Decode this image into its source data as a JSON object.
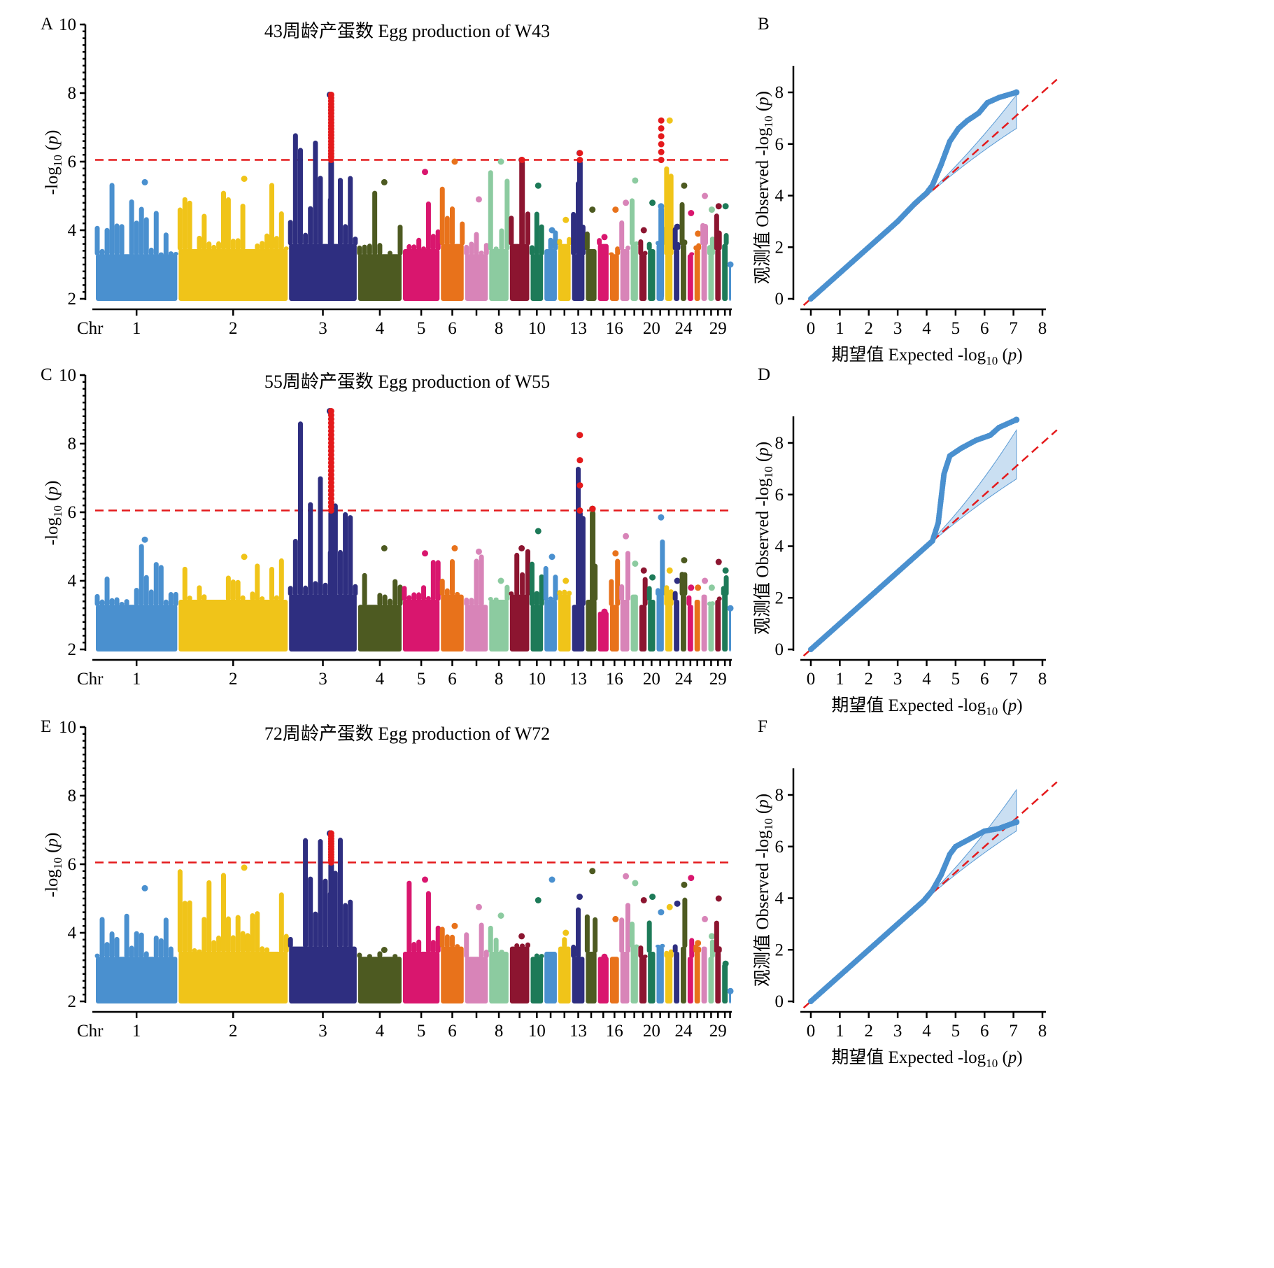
{
  "colors": {
    "chromosomes": [
      "#4a90cf",
      "#f0c419",
      "#2e2e80",
      "#4d5a21",
      "#d9166e",
      "#e8721b",
      "#d884b8",
      "#8ccba0",
      "#8c1530",
      "#1d7a58"
    ],
    "significant": "#e41a1c",
    "threshold": "#e41a1c",
    "qq_points": "#4a90cf",
    "ci_band": "#9ec5e8"
  },
  "manhattan": {
    "chr_label": "Chr",
    "chromosomes": [
      {
        "id": 1,
        "label": "1"
      },
      {
        "id": 2,
        "label": "2"
      },
      {
        "id": 3,
        "label": "3"
      },
      {
        "id": 4,
        "label": "4"
      },
      {
        "id": 5,
        "label": "5"
      },
      {
        "id": 6,
        "label": "6"
      },
      {
        "id": 7,
        "label": ""
      },
      {
        "id": 8,
        "label": "8"
      },
      {
        "id": 9,
        "label": ""
      },
      {
        "id": 10,
        "label": "10"
      },
      {
        "id": 11,
        "label": ""
      },
      {
        "id": 12,
        "label": ""
      },
      {
        "id": 13,
        "label": "13"
      },
      {
        "id": 14,
        "label": ""
      },
      {
        "id": 15,
        "label": ""
      },
      {
        "id": 16,
        "label": "16"
      },
      {
        "id": 17,
        "label": ""
      },
      {
        "id": 18,
        "label": ""
      },
      {
        "id": 19,
        "label": ""
      },
      {
        "id": 20,
        "label": "20"
      },
      {
        "id": 21,
        "label": ""
      },
      {
        "id": 22,
        "label": ""
      },
      {
        "id": 23,
        "label": ""
      },
      {
        "id": 24,
        "label": "24"
      },
      {
        "id": 25,
        "label": ""
      },
      {
        "id": 26,
        "label": ""
      },
      {
        "id": 27,
        "label": ""
      },
      {
        "id": 28,
        "label": ""
      },
      {
        "id": 29,
        "label": "29"
      },
      {
        "id": 30,
        "label": ""
      },
      {
        "id": 31,
        "label": ""
      }
    ],
    "ylabel_pre": "-log",
    "ylabel_sub": "10",
    "ylabel_open": " (",
    "ylabel_var": "p",
    "ylabel_close": ")",
    "yticks": [
      2,
      4,
      6,
      8,
      10
    ],
    "ylim": [
      2,
      10
    ],
    "threshold": 6.05
  },
  "qq": {
    "xticks": [
      0,
      1,
      2,
      3,
      4,
      5,
      6,
      7,
      8
    ],
    "yticks": [
      0,
      2,
      4,
      6,
      8
    ],
    "xlim": [
      0,
      8
    ],
    "ylim": [
      0,
      9
    ],
    "xlabel_pre": "期望值 Expected -log",
    "ylabel_pre": "观测值 Observed -log",
    "label_sub": "10",
    "label_open": " (",
    "label_var": "p",
    "label_close": ")"
  },
  "panels": [
    {
      "manhattan_letter": "A",
      "qq_letter": "B",
      "title": "43周龄产蛋数 Egg production of W43",
      "chart_data": {
        "type": "scatter",
        "description_of_series": "manhattan",
        "chromosome_peaks": [
          5.4,
          5.5,
          7.95,
          5.4,
          5.7,
          6.0,
          4.9,
          6.0,
          6.05,
          5.3,
          4.0,
          4.3,
          6.25,
          4.6,
          3.8,
          4.6,
          4.8,
          5.45,
          4.0,
          4.8,
          4.7,
          7.2,
          4.1,
          5.3,
          4.5,
          3.9,
          5.0,
          4.6,
          4.7,
          4.7,
          3.0
        ],
        "significant_hits": [
          {
            "chr": 3,
            "max": 7.95,
            "count": 22
          },
          {
            "chr": 13,
            "max": 6.25,
            "count": 2
          },
          {
            "chr": 21,
            "max": 7.2,
            "count": 6
          },
          {
            "chr": 9,
            "max": 6.05,
            "count": 1
          }
        ],
        "qq_points": [
          [
            0,
            0
          ],
          [
            1,
            1
          ],
          [
            2,
            2
          ],
          [
            3,
            3
          ],
          [
            3.6,
            3.7
          ],
          [
            4.0,
            4.1
          ],
          [
            4.2,
            4.4
          ],
          [
            4.5,
            5.2
          ],
          [
            4.8,
            6.1
          ],
          [
            5.1,
            6.6
          ],
          [
            5.4,
            6.9
          ],
          [
            5.8,
            7.2
          ],
          [
            6.1,
            7.6
          ],
          [
            6.5,
            7.8
          ],
          [
            7.1,
            8.0
          ]
        ],
        "qq_ci_max": [
          7.1,
          7.9
        ],
        "qq_ci_min": [
          7.1,
          6.6
        ]
      }
    },
    {
      "manhattan_letter": "C",
      "qq_letter": "D",
      "title": "55周龄产蛋数 Egg production of W55",
      "chart_data": {
        "type": "scatter",
        "description_of_series": "manhattan",
        "chromosome_peaks": [
          5.2,
          4.7,
          8.95,
          4.95,
          4.8,
          4.95,
          4.85,
          4.0,
          4.95,
          5.45,
          4.7,
          4.0,
          8.25,
          6.1,
          3.1,
          4.8,
          5.3,
          4.5,
          4.3,
          4.1,
          5.85,
          4.3,
          4.0,
          4.6,
          3.8,
          3.8,
          4.0,
          3.8,
          4.55,
          4.3,
          3.2
        ],
        "significant_hits": [
          {
            "chr": 3,
            "max": 8.95,
            "count": 26
          },
          {
            "chr": 13,
            "max": 8.25,
            "count": 4
          },
          {
            "chr": 14,
            "max": 6.1,
            "count": 1
          }
        ],
        "qq_points": [
          [
            0,
            0
          ],
          [
            1,
            1
          ],
          [
            2,
            2
          ],
          [
            3,
            3
          ],
          [
            3.8,
            3.8
          ],
          [
            4.2,
            4.2
          ],
          [
            4.4,
            4.9
          ],
          [
            4.6,
            6.8
          ],
          [
            4.8,
            7.5
          ],
          [
            5.2,
            7.8
          ],
          [
            5.7,
            8.1
          ],
          [
            6.2,
            8.3
          ],
          [
            6.5,
            8.6
          ],
          [
            7.1,
            8.9
          ]
        ],
        "qq_ci_max": [
          7.1,
          8.5
        ],
        "qq_ci_min": [
          7.1,
          6.6
        ]
      }
    },
    {
      "manhattan_letter": "E",
      "qq_letter": "F",
      "title": "72周龄产蛋数 Egg production of W72",
      "chart_data": {
        "type": "scatter",
        "description_of_series": "manhattan",
        "chromosome_peaks": [
          5.3,
          5.9,
          6.9,
          3.5,
          5.55,
          4.2,
          4.75,
          4.5,
          3.9,
          4.95,
          5.55,
          4.0,
          5.05,
          5.8,
          3.3,
          4.4,
          5.65,
          5.45,
          4.95,
          5.05,
          4.6,
          4.75,
          4.85,
          5.4,
          5.6,
          3.7,
          4.4,
          3.9,
          5.0,
          3.1,
          2.3
        ],
        "significant_hits": [
          {
            "chr": 3,
            "max": 6.9,
            "count": 12
          }
        ],
        "qq_points": [
          [
            0,
            0
          ],
          [
            1,
            1
          ],
          [
            2,
            2
          ],
          [
            3,
            3
          ],
          [
            3.9,
            3.9
          ],
          [
            4.2,
            4.3
          ],
          [
            4.5,
            4.9
          ],
          [
            4.8,
            5.7
          ],
          [
            5.0,
            6.0
          ],
          [
            5.5,
            6.3
          ],
          [
            6.0,
            6.6
          ],
          [
            6.5,
            6.7
          ],
          [
            7.1,
            6.95
          ]
        ],
        "qq_ci_max": [
          7.1,
          8.2
        ],
        "qq_ci_min": [
          7.1,
          6.6
        ]
      }
    }
  ]
}
